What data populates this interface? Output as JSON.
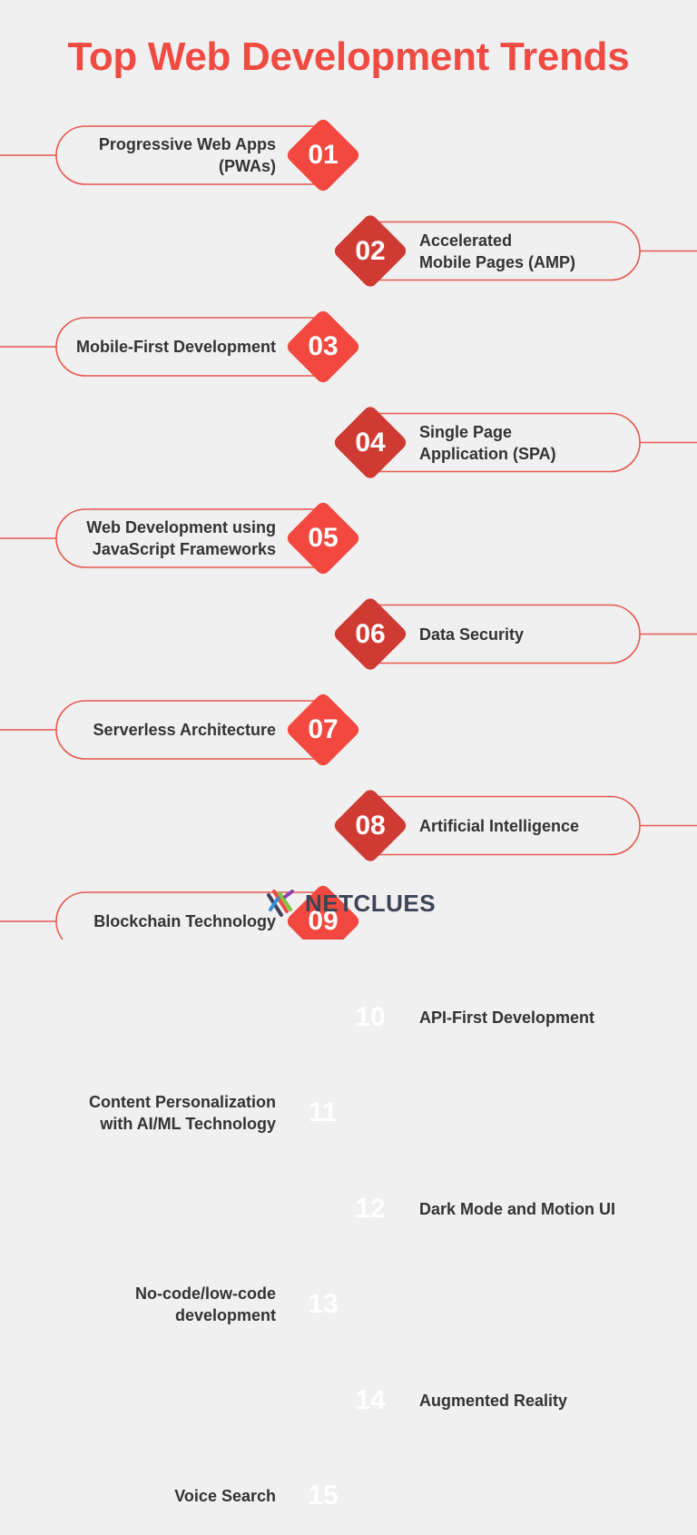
{
  "title": "Top Web Development Trends",
  "trends": [
    {
      "number": "01",
      "label": "Progressive Web Apps\n(PWAs)",
      "side": "left"
    },
    {
      "number": "02",
      "label": "Accelerated\nMobile Pages (AMP)",
      "side": "right"
    },
    {
      "number": "03",
      "label": "Mobile-First Development",
      "side": "left"
    },
    {
      "number": "04",
      "label": "Single Page\nApplication (SPA)",
      "side": "right"
    },
    {
      "number": "05",
      "label": "Web Development using\nJavaScript Frameworks",
      "side": "left"
    },
    {
      "number": "06",
      "label": "Data Security",
      "side": "right"
    },
    {
      "number": "07",
      "label": "Serverless Architecture",
      "side": "left"
    },
    {
      "number": "08",
      "label": "Artificial Intelligence",
      "side": "right"
    },
    {
      "number": "09",
      "label": "Blockchain Technology",
      "side": "left"
    },
    {
      "number": "10",
      "label": "API-First Development",
      "side": "right"
    },
    {
      "number": "11",
      "label": "Content Personalization\nwith AI/ML Technology",
      "side": "left"
    },
    {
      "number": "12",
      "label": "Dark Mode and Motion UI",
      "side": "right"
    },
    {
      "number": "13",
      "label": "No-code/low-code\ndevelopment",
      "side": "left"
    },
    {
      "number": "14",
      "label": "Augmented Reality",
      "side": "right"
    },
    {
      "number": "15",
      "label": "Voice Search",
      "side": "left"
    }
  ],
  "colors": {
    "title": "#ef4b43",
    "outline": "#e8594f",
    "diamond_left": "#f2483f",
    "diamond_right": "#cf3a32",
    "text": "#333333",
    "background": "#f0f0f0"
  },
  "logo": {
    "text": "NETCLUES",
    "icon": "netclues-logo-icon"
  }
}
